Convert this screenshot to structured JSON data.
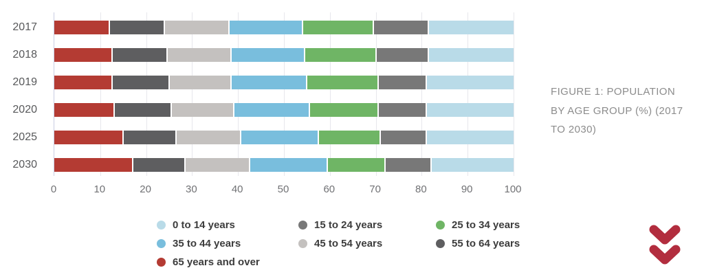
{
  "figure": {
    "caption_lines": [
      "FIGURE 1: POPULATION",
      "BY AGE GROUP (%) (2017",
      "TO 2030)"
    ]
  },
  "icons": {
    "scroll_down_chevron": "double-chevron-down"
  },
  "colors": {
    "grid": "#e7e7ec",
    "axis": "#c9cde2",
    "chevron": "#b22d3e",
    "legend_text": "#3c3c3c",
    "caption_text": "#8c8c8c"
  },
  "chart_data": {
    "type": "bar",
    "orientation": "horizontal-stacked",
    "title": "",
    "xlabel": "",
    "ylabel": "",
    "xlim": [
      0,
      100
    ],
    "x_ticks": [
      0,
      10,
      20,
      30,
      40,
      50,
      60,
      70,
      80,
      90,
      100
    ],
    "grid": "vertical",
    "legend_position": "bottom",
    "categories": [
      "2017",
      "2018",
      "2019",
      "2020",
      "2025",
      "2030"
    ],
    "series": [
      {
        "name": "0 to 14 years",
        "color": "#b9dbe8",
        "values": [
          18.5,
          18.5,
          19,
          19,
          19,
          18
        ]
      },
      {
        "name": "15 to 24 years",
        "color": "#787878",
        "values": [
          12,
          11.5,
          10.5,
          10.5,
          10,
          10
        ]
      },
      {
        "name": "25 to 34 years",
        "color": "#6fb565",
        "values": [
          15.5,
          15.5,
          15.5,
          15,
          13.5,
          12.5
        ]
      },
      {
        "name": "35 to 44 years",
        "color": "#79bedd",
        "values": [
          16,
          16,
          16.5,
          16.5,
          17,
          17
        ]
      },
      {
        "name": "45 to 54 years",
        "color": "#c4c1bf",
        "values": [
          14,
          14,
          13.5,
          13.5,
          14,
          14
        ]
      },
      {
        "name": "55 to 64 years",
        "color": "#5e5e60",
        "values": [
          12,
          12,
          12.5,
          12.5,
          11.5,
          11.5
        ]
      },
      {
        "name": "65 years and over",
        "color": "#b43b33",
        "values": [
          12,
          12.5,
          12.5,
          13,
          15,
          17
        ]
      }
    ],
    "stack_order_left_to_right": [
      "65 years and over",
      "55 to 64 years",
      "45 to 54 years",
      "35 to 44 years",
      "25 to 34 years",
      "15 to 24 years",
      "0 to 14 years"
    ],
    "legend_order": [
      "0 to 14 years",
      "15 to 24 years",
      "25 to 34 years",
      "35 to 44 years",
      "45 to 54 years",
      "55 to 64 years",
      "65 years and over"
    ]
  }
}
